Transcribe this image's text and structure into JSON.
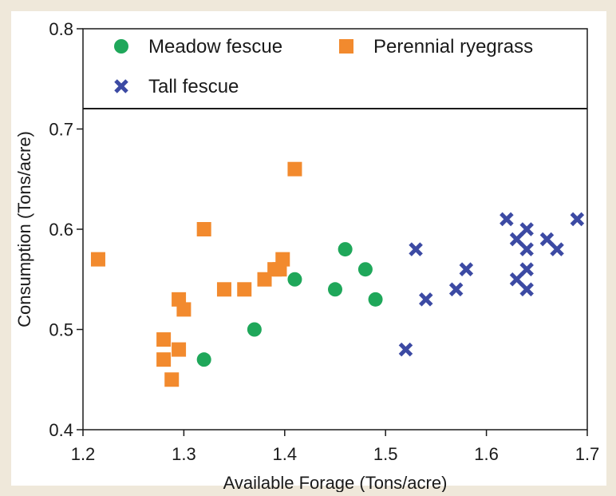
{
  "chart_data": {
    "type": "scatter",
    "title": "",
    "xlabel": "Available Forage (Tons/acre)",
    "ylabel": "Consumption (Tons/acre)",
    "xlim": [
      1.2,
      1.7
    ],
    "ylim": [
      0.4,
      0.8
    ],
    "xticks": [
      "1.2",
      "1.3",
      "1.4",
      "1.5",
      "1.6",
      "1.7"
    ],
    "yticks": [
      "0.4",
      "0.5",
      "0.6",
      "0.7",
      "0.8"
    ],
    "grid": false,
    "legend_position": "top",
    "series": [
      {
        "name": "Meadow fescue",
        "marker": "circle",
        "color": "#1fa75a",
        "points": [
          [
            1.32,
            0.47
          ],
          [
            1.37,
            0.5
          ],
          [
            1.41,
            0.55
          ],
          [
            1.45,
            0.54
          ],
          [
            1.46,
            0.58
          ],
          [
            1.48,
            0.56
          ],
          [
            1.49,
            0.53
          ]
        ]
      },
      {
        "name": "Perennial ryegrass",
        "marker": "square",
        "color": "#f28a2e",
        "points": [
          [
            1.215,
            0.57
          ],
          [
            1.28,
            0.49
          ],
          [
            1.28,
            0.47
          ],
          [
            1.288,
            0.45
          ],
          [
            1.295,
            0.53
          ],
          [
            1.295,
            0.48
          ],
          [
            1.3,
            0.52
          ],
          [
            1.32,
            0.6
          ],
          [
            1.34,
            0.54
          ],
          [
            1.36,
            0.54
          ],
          [
            1.38,
            0.55
          ],
          [
            1.39,
            0.56
          ],
          [
            1.395,
            0.56
          ],
          [
            1.398,
            0.57
          ],
          [
            1.41,
            0.66
          ]
        ]
      },
      {
        "name": "Tall fescue",
        "marker": "x",
        "color": "#3c4aa3",
        "points": [
          [
            1.52,
            0.48
          ],
          [
            1.53,
            0.58
          ],
          [
            1.54,
            0.53
          ],
          [
            1.57,
            0.54
          ],
          [
            1.58,
            0.56
          ],
          [
            1.62,
            0.61
          ],
          [
            1.63,
            0.59
          ],
          [
            1.63,
            0.55
          ],
          [
            1.64,
            0.6
          ],
          [
            1.64,
            0.58
          ],
          [
            1.64,
            0.56
          ],
          [
            1.64,
            0.54
          ],
          [
            1.66,
            0.59
          ],
          [
            1.67,
            0.58
          ],
          [
            1.69,
            0.61
          ]
        ]
      }
    ]
  }
}
